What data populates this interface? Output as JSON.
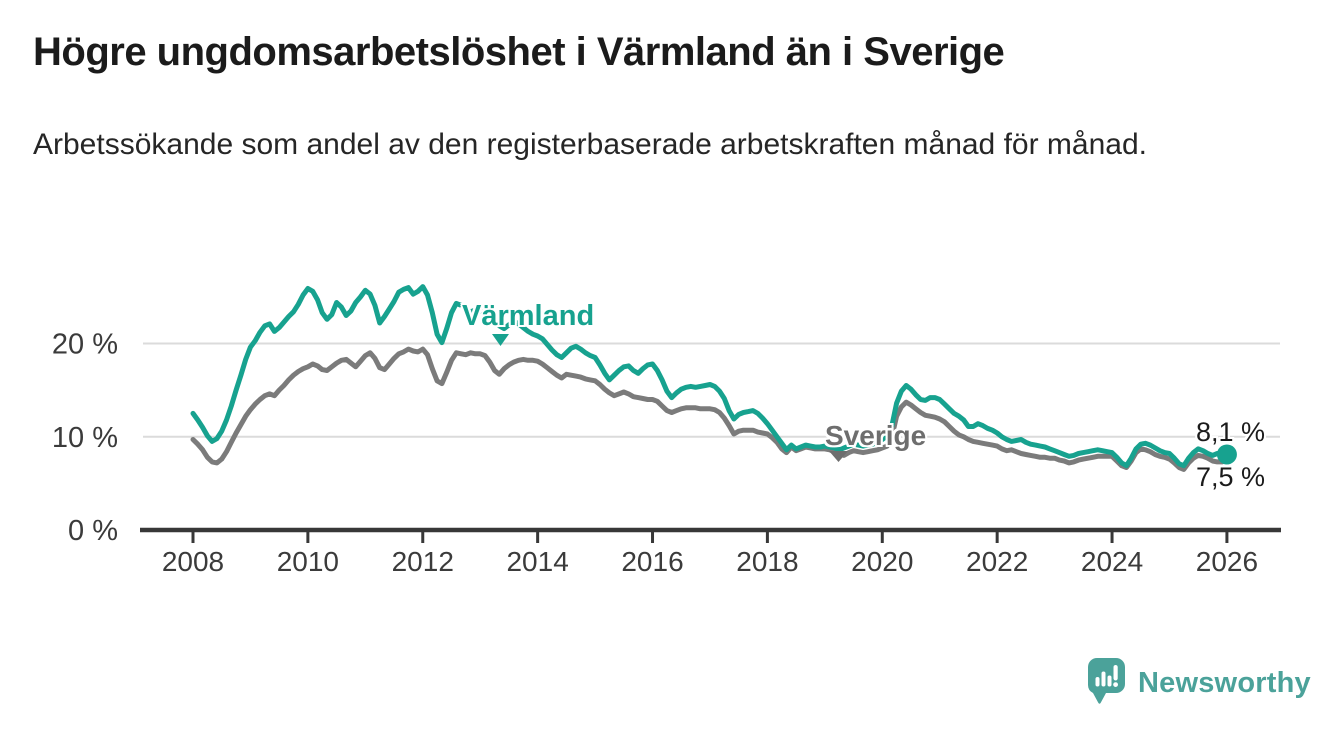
{
  "page": {
    "title": "Högre ungdomsarbetslöshet i Värmland än i Sverige",
    "subtitle": "Arbetssökande som andel av den registerbaserade arbetskraften månad för månad."
  },
  "colors": {
    "varmland": "#17A28F",
    "sverige": "#7B7B7B",
    "sverige_label": "#6E6E6E",
    "grid": "#DBDBDB",
    "axis": "#383838",
    "tick_text": "#3B3B3B",
    "end_label_text": "#1B1B1B",
    "logo_teal": "#4BA29A"
  },
  "chart_data": {
    "type": "line",
    "title": "Högre ungdomsarbetslöshet i Värmland än i Sverige",
    "subtitle": "Arbetssökande som andel av den registerbaserade arbetskraften månad för månad.",
    "unit": "%",
    "frequency": "monthly",
    "x_start": "2008-01",
    "x_end": "2026-01",
    "x_ticks": [
      2008,
      2010,
      2012,
      2014,
      2016,
      2018,
      2020,
      2022,
      2024,
      2026
    ],
    "y_ticks": [
      {
        "value": 0,
        "label": "0 %"
      },
      {
        "value": 10,
        "label": "10 %"
      },
      {
        "value": 20,
        "label": "20 %"
      }
    ],
    "ylim": [
      0,
      27.8
    ],
    "grid": "horizontal-only",
    "legend_position": "inline-labels",
    "series": [
      {
        "name": "Värmland",
        "last_value_label": "8,1 %",
        "values": [
          12.5,
          11.8,
          11.0,
          10.1,
          9.5,
          9.8,
          10.6,
          11.8,
          13.3,
          15.0,
          16.6,
          18.3,
          19.6,
          20.3,
          21.2,
          21.9,
          22.1,
          21.3,
          21.7,
          22.3,
          22.9,
          23.4,
          24.2,
          25.2,
          25.9,
          25.6,
          24.7,
          23.3,
          22.6,
          23.1,
          24.4,
          23.9,
          23.0,
          23.5,
          24.4,
          25.0,
          25.7,
          25.3,
          24.1,
          22.2,
          22.9,
          23.7,
          24.5,
          25.5,
          25.8,
          26.0,
          25.3,
          25.6,
          26.1,
          25.2,
          23.3,
          21.0,
          20.1,
          21.6,
          23.3,
          24.3,
          24.1,
          23.7,
          23.4,
          23.6,
          23.5,
          23.3,
          22.9,
          22.4,
          21.9,
          21.6,
          22.0,
          22.4,
          22.1,
          21.7,
          21.3,
          21.0,
          20.8,
          20.5,
          19.9,
          19.3,
          18.8,
          18.5,
          19.0,
          19.5,
          19.7,
          19.4,
          19.0,
          18.7,
          18.5,
          17.7,
          16.8,
          16.1,
          16.6,
          17.1,
          17.5,
          17.6,
          17.1,
          16.8,
          17.3,
          17.7,
          17.8,
          17.1,
          16.1,
          14.9,
          14.2,
          14.7,
          15.1,
          15.3,
          15.4,
          15.3,
          15.4,
          15.5,
          15.6,
          15.4,
          14.9,
          14.1,
          12.8,
          11.9,
          12.4,
          12.6,
          12.7,
          12.8,
          12.5,
          12.0,
          11.4,
          10.7,
          10.0,
          9.3,
          8.6,
          9.1,
          8.7,
          8.9,
          9.1,
          9.0,
          8.9,
          8.9,
          9.0,
          8.9,
          8.8,
          8.6,
          8.8,
          9.0,
          9.2,
          9.1,
          9.0,
          9.1,
          9.2,
          9.4,
          9.7,
          10.1,
          11.2,
          13.6,
          14.9,
          15.5,
          15.1,
          14.5,
          14.0,
          13.9,
          14.2,
          14.2,
          14.0,
          13.5,
          13.0,
          12.5,
          12.2,
          11.8,
          11.1,
          11.1,
          11.4,
          11.2,
          10.9,
          10.7,
          10.4,
          10.0,
          9.7,
          9.5,
          9.6,
          9.7,
          9.4,
          9.2,
          9.1,
          9.0,
          8.9,
          8.7,
          8.5,
          8.3,
          8.1,
          7.9,
          8.0,
          8.2,
          8.3,
          8.4,
          8.5,
          8.6,
          8.5,
          8.4,
          8.3,
          7.8,
          7.2,
          6.9,
          7.7,
          8.7,
          9.2,
          9.3,
          9.1,
          8.8,
          8.5,
          8.3,
          8.2,
          7.7,
          7.1,
          6.9,
          7.7,
          8.3,
          8.7,
          8.5,
          8.2,
          8.0,
          8.2,
          8.2,
          8.1
        ]
      },
      {
        "name": "Sverige",
        "last_value_label": "7,5 %",
        "values": [
          9.7,
          9.2,
          8.6,
          7.8,
          7.3,
          7.2,
          7.6,
          8.4,
          9.4,
          10.4,
          11.3,
          12.2,
          12.9,
          13.5,
          14.0,
          14.4,
          14.6,
          14.4,
          15.0,
          15.5,
          16.1,
          16.6,
          17.0,
          17.3,
          17.5,
          17.8,
          17.6,
          17.2,
          17.1,
          17.5,
          17.9,
          18.2,
          18.3,
          17.9,
          17.5,
          18.1,
          18.7,
          19.0,
          18.4,
          17.4,
          17.2,
          17.8,
          18.4,
          18.9,
          19.1,
          19.4,
          19.2,
          19.1,
          19.4,
          18.8,
          17.3,
          16.0,
          15.7,
          16.9,
          18.2,
          19.0,
          18.9,
          18.8,
          19.0,
          18.9,
          18.9,
          18.7,
          18.0,
          17.1,
          16.7,
          17.3,
          17.7,
          18.0,
          18.2,
          18.3,
          18.2,
          18.2,
          18.1,
          17.8,
          17.4,
          17.0,
          16.6,
          16.3,
          16.7,
          16.6,
          16.5,
          16.4,
          16.2,
          16.1,
          16.0,
          15.6,
          15.1,
          14.7,
          14.4,
          14.6,
          14.8,
          14.6,
          14.3,
          14.2,
          14.1,
          14.0,
          14.0,
          13.8,
          13.3,
          12.8,
          12.6,
          12.8,
          13.0,
          13.1,
          13.1,
          13.1,
          13.0,
          13.0,
          13.0,
          12.9,
          12.6,
          12.0,
          11.2,
          10.3,
          10.6,
          10.7,
          10.7,
          10.7,
          10.5,
          10.4,
          10.3,
          9.9,
          9.4,
          8.7,
          8.3,
          8.9,
          8.5,
          8.7,
          8.9,
          8.8,
          8.7,
          8.7,
          8.7,
          8.6,
          8.4,
          8.2,
          8.0,
          8.3,
          8.5,
          8.4,
          8.3,
          8.4,
          8.5,
          8.6,
          8.8,
          9.0,
          10.0,
          12.2,
          13.2,
          13.7,
          13.4,
          13.0,
          12.6,
          12.3,
          12.2,
          12.1,
          11.9,
          11.6,
          11.1,
          10.6,
          10.2,
          10.0,
          9.7,
          9.5,
          9.4,
          9.3,
          9.2,
          9.1,
          9.0,
          8.7,
          8.5,
          8.6,
          8.4,
          8.2,
          8.1,
          8.0,
          7.9,
          7.8,
          7.8,
          7.7,
          7.7,
          7.5,
          7.4,
          7.2,
          7.3,
          7.5,
          7.6,
          7.7,
          7.8,
          7.9,
          7.9,
          7.9,
          7.9,
          7.4,
          6.9,
          6.7,
          7.4,
          8.3,
          8.7,
          8.6,
          8.4,
          8.1,
          7.9,
          7.8,
          7.6,
          7.2,
          6.7,
          6.5,
          7.2,
          7.7,
          8.0,
          7.9,
          7.7,
          7.4,
          7.3,
          7.3,
          7.5
        ]
      }
    ],
    "end_labels": {
      "varmland": "8,1 %",
      "sverige": "7,5 %"
    }
  },
  "branding": {
    "name": "Newsworthy",
    "icon": "newsworthy-speech-bubble-bar-chart-icon"
  }
}
